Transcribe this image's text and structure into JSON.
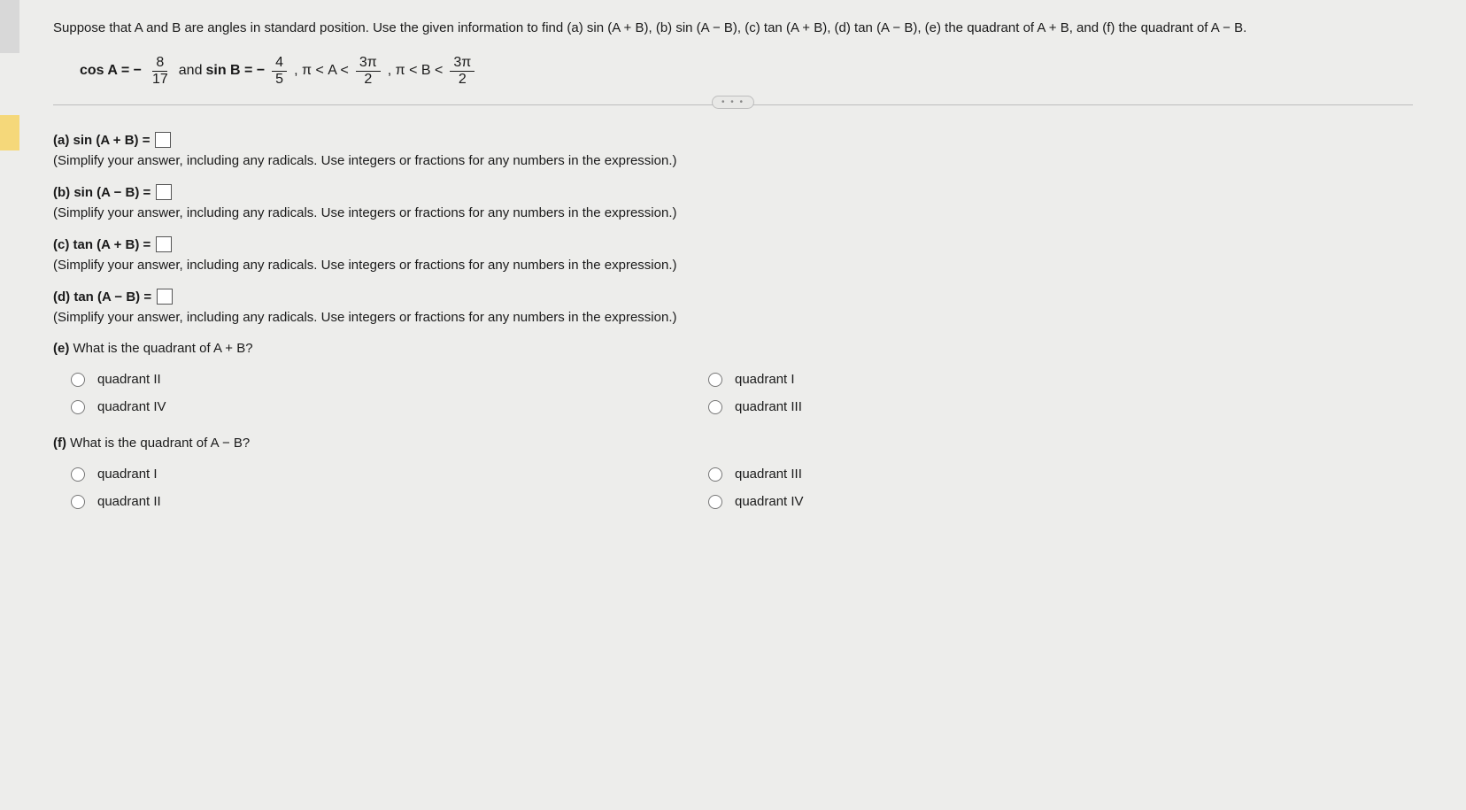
{
  "intro": "Suppose that A and B are angles in standard position. Use the given information to find (a) sin (A + B), (b) sin (A − B), (c) tan (A + B), (d) tan (A − B), (e) the quadrant of A + B, and (f) the quadrant of A − B.",
  "given": {
    "cosA_label": "cos A = −",
    "cosA_num": "8",
    "cosA_den": "17",
    "and": " and ",
    "sinB_label": "sin B = −",
    "sinB_num": "4",
    "sinB_den": "5",
    "sep1": ", π < A <",
    "a_up_num": "3π",
    "a_up_den": "2",
    "sep2": ", π < B <",
    "b_up_num": "3π",
    "b_up_den": "2"
  },
  "ellipsis": "• • •",
  "parts": {
    "a": {
      "label": "(a) sin (A + B) =",
      "hint": "(Simplify your answer, including any radicals. Use integers or fractions for any numbers in the expression.)"
    },
    "b": {
      "label": "(b) sin (A − B) =",
      "hint": "(Simplify your answer, including any radicals. Use integers or fractions for any numbers in the expression.)"
    },
    "c": {
      "label": "(c) tan (A + B) =",
      "hint": "(Simplify your answer, including any radicals. Use integers or fractions for any numbers in the expression.)"
    },
    "d": {
      "label": "(d) tan (A − B) =",
      "hint": "(Simplify your answer, including any radicals. Use integers or fractions for any numbers in the expression.)"
    }
  },
  "e": {
    "question": "(e) What is the quadrant of A + B?",
    "opts": {
      "tl": "quadrant II",
      "tr": "quadrant I",
      "bl": "quadrant IV",
      "br": "quadrant III"
    }
  },
  "f": {
    "question": "(f) What is the quadrant of A − B?",
    "opts": {
      "tl": "quadrant I",
      "tr": "quadrant III",
      "bl": "quadrant II",
      "br": "quadrant IV"
    }
  }
}
